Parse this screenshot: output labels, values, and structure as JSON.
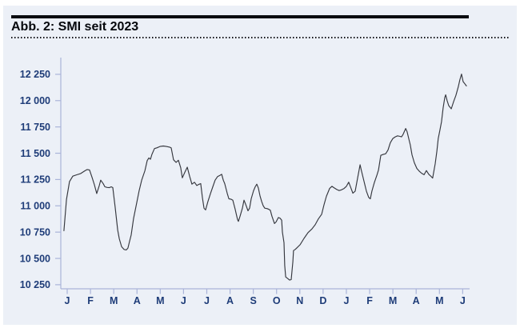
{
  "header": {
    "title": "Abb. 2: SMI seit 2023"
  },
  "chart_data": {
    "type": "line",
    "title": "Abb. 2: SMI seit 2023",
    "xlabel": "",
    "ylabel": "",
    "grid": false,
    "legend_position": "none",
    "x_axis_meaning": "months from January 2023 to June 2024",
    "x_tick_labels": [
      "J",
      "F",
      "M",
      "A",
      "M",
      "J",
      "J",
      "A",
      "S",
      "O",
      "N",
      "D",
      "J",
      "F",
      "M",
      "A",
      "M",
      "J"
    ],
    "y_ticks": [
      {
        "value": 12250,
        "label": "12 250"
      },
      {
        "value": 12000,
        "label": "12 000"
      },
      {
        "value": 11750,
        "label": "11 750"
      },
      {
        "value": 11500,
        "label": "11 500"
      },
      {
        "value": 11250,
        "label": "11 250"
      },
      {
        "value": 11000,
        "label": "11 000"
      },
      {
        "value": 10750,
        "label": "10 750"
      },
      {
        "value": 10500,
        "label": "10 500"
      },
      {
        "value": 10250,
        "label": "10 250"
      }
    ],
    "ylim": [
      10200,
      12330
    ],
    "xlim_months": [
      -0.275,
      17.3
    ],
    "colors": {
      "panel_background": "#ecf0f7",
      "axis": "#aab4d9",
      "tick_labels": "#1e3c78",
      "series_line": "#35373e",
      "title_text": "#05070c",
      "rule": "#0a0c10"
    },
    "series": [
      {
        "name": "SMI",
        "points_month_value": [
          [
            -0.14,
            10763
          ],
          [
            -0.03,
            11060
          ],
          [
            0.1,
            11231
          ],
          [
            0.24,
            11282
          ],
          [
            0.41,
            11295
          ],
          [
            0.58,
            11307
          ],
          [
            0.76,
            11333
          ],
          [
            0.86,
            11345
          ],
          [
            0.96,
            11341
          ],
          [
            1.07,
            11270
          ],
          [
            1.17,
            11200
          ],
          [
            1.27,
            11117
          ],
          [
            1.38,
            11193
          ],
          [
            1.44,
            11244
          ],
          [
            1.55,
            11210
          ],
          [
            1.62,
            11181
          ],
          [
            1.72,
            11175
          ],
          [
            1.82,
            11173
          ],
          [
            1.89,
            11181
          ],
          [
            1.96,
            11173
          ],
          [
            2.06,
            10990
          ],
          [
            2.17,
            10770
          ],
          [
            2.24,
            10687
          ],
          [
            2.34,
            10611
          ],
          [
            2.44,
            10585
          ],
          [
            2.54,
            10581
          ],
          [
            2.61,
            10598
          ],
          [
            2.68,
            10661
          ],
          [
            2.75,
            10724
          ],
          [
            2.85,
            10877
          ],
          [
            2.99,
            11029
          ],
          [
            3.09,
            11143
          ],
          [
            3.2,
            11244
          ],
          [
            3.34,
            11333
          ],
          [
            3.44,
            11430
          ],
          [
            3.51,
            11455
          ],
          [
            3.58,
            11443
          ],
          [
            3.64,
            11489
          ],
          [
            3.75,
            11544
          ],
          [
            3.85,
            11551
          ],
          [
            3.99,
            11564
          ],
          [
            4.13,
            11569
          ],
          [
            4.26,
            11564
          ],
          [
            4.4,
            11558
          ],
          [
            4.47,
            11550
          ],
          [
            4.57,
            11438
          ],
          [
            4.68,
            11413
          ],
          [
            4.78,
            11433
          ],
          [
            4.88,
            11362
          ],
          [
            4.95,
            11266
          ],
          [
            5.05,
            11317
          ],
          [
            5.16,
            11367
          ],
          [
            5.26,
            11282
          ],
          [
            5.36,
            11206
          ],
          [
            5.47,
            11224
          ],
          [
            5.57,
            11193
          ],
          [
            5.67,
            11205
          ],
          [
            5.74,
            11211
          ],
          [
            5.81,
            11079
          ],
          [
            5.88,
            10978
          ],
          [
            5.95,
            10961
          ],
          [
            6.05,
            11041
          ],
          [
            6.16,
            11117
          ],
          [
            6.26,
            11181
          ],
          [
            6.36,
            11244
          ],
          [
            6.46,
            11277
          ],
          [
            6.57,
            11290
          ],
          [
            6.64,
            11300
          ],
          [
            6.71,
            11244
          ],
          [
            6.77,
            11211
          ],
          [
            6.88,
            11117
          ],
          [
            6.95,
            11067
          ],
          [
            7.05,
            11062
          ],
          [
            7.12,
            11054
          ],
          [
            7.22,
            10966
          ],
          [
            7.32,
            10870
          ],
          [
            7.36,
            10852
          ],
          [
            7.43,
            10902
          ],
          [
            7.53,
            10978
          ],
          [
            7.6,
            11054
          ],
          [
            7.67,
            11016
          ],
          [
            7.77,
            10953
          ],
          [
            7.84,
            10978
          ],
          [
            7.91,
            11067
          ],
          [
            8.01,
            11143
          ],
          [
            8.08,
            11181
          ],
          [
            8.15,
            11206
          ],
          [
            8.22,
            11168
          ],
          [
            8.29,
            11092
          ],
          [
            8.36,
            11041
          ],
          [
            8.42,
            11003
          ],
          [
            8.49,
            10978
          ],
          [
            8.6,
            10973
          ],
          [
            8.67,
            10966
          ],
          [
            8.73,
            10958
          ],
          [
            8.8,
            10902
          ],
          [
            8.91,
            10832
          ],
          [
            8.98,
            10847
          ],
          [
            9.08,
            10889
          ],
          [
            9.15,
            10882
          ],
          [
            9.22,
            10864
          ],
          [
            9.25,
            10750
          ],
          [
            9.32,
            10649
          ],
          [
            9.35,
            10433
          ],
          [
            9.39,
            10324
          ],
          [
            9.49,
            10307
          ],
          [
            9.56,
            10294
          ],
          [
            9.63,
            10299
          ],
          [
            9.7,
            10470
          ],
          [
            9.73,
            10575
          ],
          [
            9.8,
            10585
          ],
          [
            9.87,
            10600
          ],
          [
            10.01,
            10630
          ],
          [
            10.18,
            10690
          ],
          [
            10.35,
            10745
          ],
          [
            10.52,
            10780
          ],
          [
            10.66,
            10820
          ],
          [
            10.8,
            10877
          ],
          [
            10.94,
            10920
          ],
          [
            11.04,
            11010
          ],
          [
            11.14,
            11090
          ],
          [
            11.28,
            11165
          ],
          [
            11.38,
            11185
          ],
          [
            11.48,
            11170
          ],
          [
            11.59,
            11155
          ],
          [
            11.69,
            11145
          ],
          [
            11.79,
            11152
          ],
          [
            11.9,
            11165
          ],
          [
            12.0,
            11185
          ],
          [
            12.1,
            11225
          ],
          [
            12.21,
            11160
          ],
          [
            12.28,
            11120
          ],
          [
            12.38,
            11140
          ],
          [
            12.48,
            11260
          ],
          [
            12.59,
            11390
          ],
          [
            12.65,
            11330
          ],
          [
            12.76,
            11230
          ],
          [
            12.86,
            11140
          ],
          [
            12.96,
            11080
          ],
          [
            13.03,
            11067
          ],
          [
            13.1,
            11140
          ],
          [
            13.2,
            11220
          ],
          [
            13.31,
            11290
          ],
          [
            13.38,
            11340
          ],
          [
            13.48,
            11480
          ],
          [
            13.58,
            11488
          ],
          [
            13.69,
            11495
          ],
          [
            13.79,
            11530
          ],
          [
            13.89,
            11600
          ],
          [
            14.0,
            11640
          ],
          [
            14.1,
            11655
          ],
          [
            14.2,
            11665
          ],
          [
            14.31,
            11660
          ],
          [
            14.37,
            11655
          ],
          [
            14.44,
            11680
          ],
          [
            14.55,
            11735
          ],
          [
            14.61,
            11704
          ],
          [
            14.68,
            11640
          ],
          [
            14.75,
            11578
          ],
          [
            14.82,
            11485
          ],
          [
            14.92,
            11410
          ],
          [
            15.03,
            11355
          ],
          [
            15.13,
            11330
          ],
          [
            15.23,
            11310
          ],
          [
            15.34,
            11296
          ],
          [
            15.44,
            11335
          ],
          [
            15.54,
            11300
          ],
          [
            15.64,
            11280
          ],
          [
            15.71,
            11264
          ],
          [
            15.82,
            11400
          ],
          [
            15.89,
            11520
          ],
          [
            15.95,
            11640
          ],
          [
            16.02,
            11720
          ],
          [
            16.09,
            11800
          ],
          [
            16.16,
            11930
          ],
          [
            16.23,
            12030
          ],
          [
            16.27,
            12055
          ],
          [
            16.33,
            12000
          ],
          [
            16.4,
            11953
          ],
          [
            16.51,
            11922
          ],
          [
            16.61,
            11990
          ],
          [
            16.71,
            12050
          ],
          [
            16.81,
            12130
          ],
          [
            16.88,
            12200
          ],
          [
            16.95,
            12252
          ],
          [
            17.02,
            12181
          ],
          [
            17.09,
            12160
          ],
          [
            17.16,
            12140
          ]
        ]
      }
    ]
  }
}
